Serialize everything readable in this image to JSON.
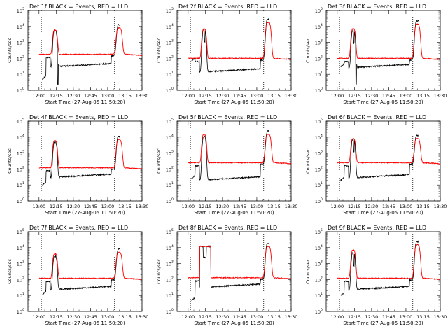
{
  "chart_data": {
    "type": "line",
    "xlabel": "Start Time (27-Aug-05 11:50:20)",
    "ylabel": "Counts/sec",
    "x_tick_labels": [
      "12:00",
      "12:15",
      "12:30",
      "12:45",
      "13:00",
      "13:15",
      "13:30"
    ],
    "xlim": [
      "11:50:20",
      "13:30:00"
    ],
    "y_scale": "log",
    "y_tick_labels": [
      "10",
      "10",
      "10",
      "10",
      "10",
      "10"
    ],
    "y_tick_exponents": [
      "0",
      "1",
      "2",
      "3",
      "4",
      "5"
    ],
    "ylim": [
      1,
      100000
    ],
    "series_colors": {
      "events": "#000000",
      "lld": "#ff0000"
    },
    "vertical_markers": [
      "12:02",
      "13:06"
    ],
    "panels": [
      {
        "title": "Det 1f BLACK = Events, RED = LLD",
        "lld_base": 180,
        "evt_base": 32,
        "p1_peak": 6000,
        "p2_peak": 8000,
        "evt_p1_peak": 6000,
        "evt_start": 5,
        "dip": true,
        "dual_peak": false
      },
      {
        "title": "Det 2f BLACK = Events, RED = LLD",
        "lld_base": 100,
        "evt_base": 15,
        "p1_peak": 7000,
        "p2_peak": 18000,
        "evt_p1_peak": 7000,
        "evt_start": 70,
        "dip": false,
        "dual_peak": true
      },
      {
        "title": "Det 3f BLACK = Events, RED = LLD",
        "lld_base": 100,
        "evt_base": 28,
        "p1_peak": 7000,
        "p2_peak": 14000,
        "evt_p1_peak": 6000,
        "evt_start": 30,
        "dip": true,
        "dual_peak": true
      },
      {
        "title": "Det 4f BLACK = Events, RED = LLD",
        "lld_base": 120,
        "evt_base": 32,
        "p1_peak": 6000,
        "p2_peak": 7000,
        "evt_p1_peak": 5000,
        "evt_start": 10,
        "dip": false,
        "dual_peak": false
      },
      {
        "title": "Det 5f BLACK = Events, RED = LLD",
        "lld_base": 250,
        "evt_base": 22,
        "p1_peak": 15000,
        "p2_peak": 15000,
        "evt_p1_peak": 12000,
        "evt_start": 25,
        "dip": false,
        "dual_peak": false
      },
      {
        "title": "Det 6f BLACK = Events, RED = LLD",
        "lld_base": 250,
        "evt_base": 30,
        "p1_peak": 8000,
        "p2_peak": 8000,
        "evt_p1_peak": 8000,
        "evt_start": 20,
        "dip": false,
        "dual_peak": true
      },
      {
        "title": "Det 7f BLACK = Events, RED = LLD",
        "lld_base": 120,
        "evt_base": 25,
        "p1_peak": 4000,
        "p2_peak": 5000,
        "evt_p1_peak": 3000,
        "evt_start": 12,
        "dip": false,
        "dual_peak": false
      },
      {
        "title": "Det 8f BLACK = Events, RED = LLD",
        "lld_base": 130,
        "evt_base": 35,
        "p1_peak": 12000,
        "p2_peak": 12000,
        "evt_p1_peak": 12000,
        "evt_start": 5,
        "dip": false,
        "dual_peak": false,
        "saturated": true
      },
      {
        "title": "Det 9f BLACK = Events, RED = LLD",
        "lld_base": 120,
        "evt_base": 25,
        "p1_peak": 7000,
        "p2_peak": 15000,
        "evt_p1_peak": 5000,
        "evt_start": 10,
        "dip": false,
        "dual_peak": true
      }
    ]
  }
}
